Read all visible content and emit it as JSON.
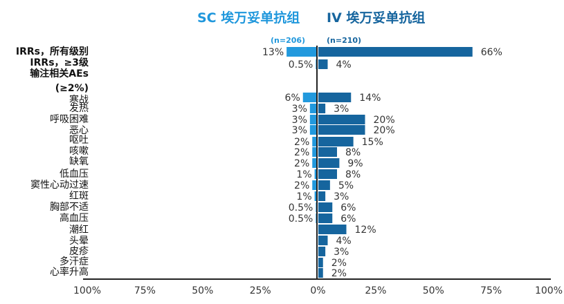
{
  "colors": {
    "sc": "#2299dd",
    "iv": "#16659e",
    "axis": "#222222"
  },
  "chart_data": {
    "type": "bar",
    "orientation": "horizontal",
    "layout": "diverging",
    "titles": {
      "left": "SC 埃万妥单抗组",
      "right": "IV 埃万妥单抗组"
    },
    "n_labels": {
      "left": "(n=206)",
      "right": "(n=210)"
    },
    "xlim": [
      -100,
      100
    ],
    "x_ticks": [
      "100%",
      "75%",
      "50%",
      "25%",
      "0%",
      "25%",
      "50%",
      "75%",
      "100%"
    ],
    "categories": [
      {
        "label": "IRRs，所有级别",
        "bold": true
      },
      {
        "label": "IRRs，≥3级",
        "bold": true
      },
      {
        "label": "输注相关AEs",
        "bold": true
      },
      {
        "label": "(≥2%)",
        "bold": true
      },
      {
        "label": "寒战"
      },
      {
        "label": "发热"
      },
      {
        "label": "呼吸困难"
      },
      {
        "label": "恶心"
      },
      {
        "label": "呕吐"
      },
      {
        "label": "咳嗽"
      },
      {
        "label": "缺氧"
      },
      {
        "label": "低血压"
      },
      {
        "label": "窦性心动过速"
      },
      {
        "label": "红斑"
      },
      {
        "label": "胸部不适"
      },
      {
        "label": "高血压"
      },
      {
        "label": "潮红"
      },
      {
        "label": "头晕"
      },
      {
        "label": "皮疹"
      },
      {
        "label": "多汗症"
      },
      {
        "label": "心率升高"
      }
    ],
    "bars": [
      {
        "sc": 13,
        "iv": 66,
        "sc_label": "13%",
        "iv_label": "66%"
      },
      {
        "sc": 0.5,
        "iv": 4,
        "sc_label": "0.5%",
        "iv_label": "4%"
      },
      {
        "sc": 6,
        "iv": 14,
        "sc_label": "6%",
        "iv_label": "14%"
      },
      {
        "sc": 3,
        "iv": 3,
        "sc_label": "3%",
        "iv_label": "3%"
      },
      {
        "sc": 3,
        "iv": 20,
        "sc_label": "3%",
        "iv_label": "20%"
      },
      {
        "sc": 3,
        "iv": 20,
        "sc_label": "3%",
        "iv_label": "20%"
      },
      {
        "sc": 2,
        "iv": 15,
        "sc_label": "2%",
        "iv_label": "15%"
      },
      {
        "sc": 2,
        "iv": 8,
        "sc_label": "2%",
        "iv_label": "8%"
      },
      {
        "sc": 2,
        "iv": 9,
        "sc_label": "2%",
        "iv_label": "9%"
      },
      {
        "sc": 1,
        "iv": 8,
        "sc_label": "1%",
        "iv_label": "8%"
      },
      {
        "sc": 2,
        "iv": 5,
        "sc_label": "2%",
        "iv_label": "5%"
      },
      {
        "sc": 1,
        "iv": 3,
        "sc_label": "1%",
        "iv_label": "3%"
      },
      {
        "sc": 0.5,
        "iv": 6,
        "sc_label": "0.5%",
        "iv_label": "6%"
      },
      {
        "sc": 0.5,
        "iv": 6,
        "sc_label": "0.5%",
        "iv_label": "6%"
      },
      {
        "sc": 0,
        "iv": 12,
        "sc_label": "",
        "iv_label": "12%"
      },
      {
        "sc": 0,
        "iv": 4,
        "sc_label": "",
        "iv_label": "4%"
      },
      {
        "sc": 0,
        "iv": 3,
        "sc_label": "",
        "iv_label": "3%"
      },
      {
        "sc": 0,
        "iv": 2,
        "sc_label": "",
        "iv_label": "2%"
      },
      {
        "sc": 0,
        "iv": 2,
        "sc_label": "",
        "iv_label": "2%"
      }
    ]
  }
}
